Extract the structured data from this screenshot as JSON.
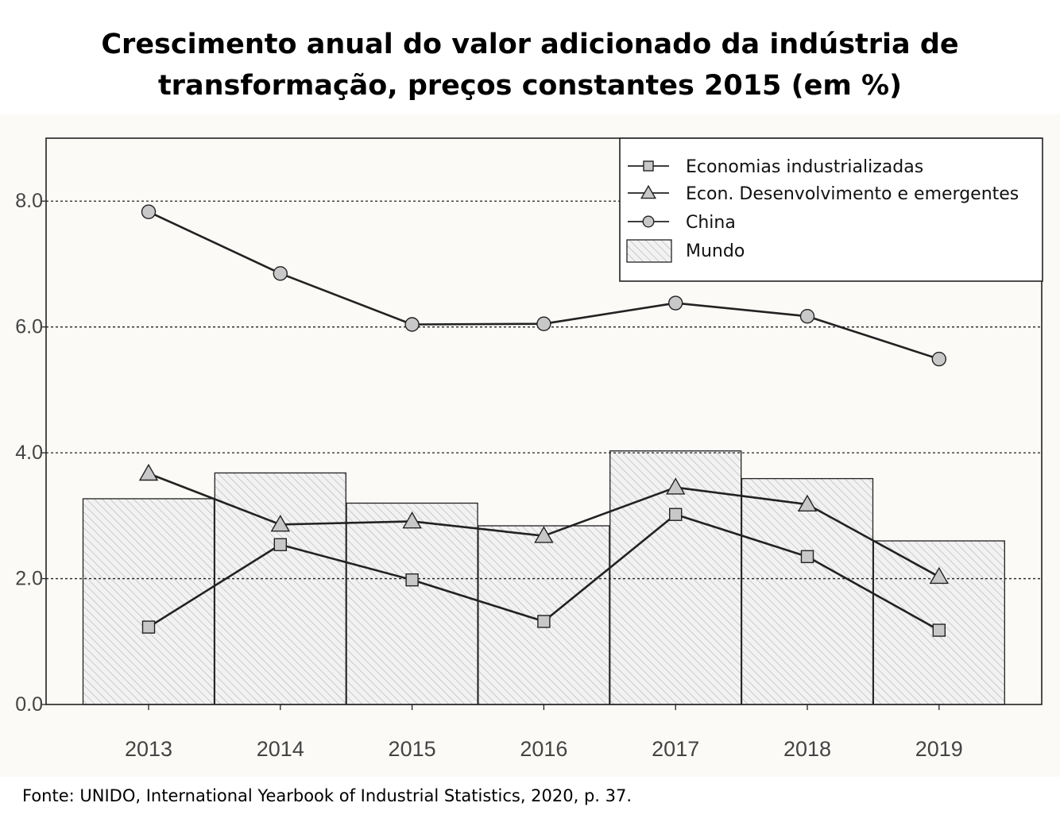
{
  "title_line1": "Crescimento anual do valor adicionado da indústria de",
  "title_line2": "transformação, preços constantes 2015 (em %)",
  "source": "Fonte: UNIDO, International Yearbook of Industrial Statistics, 2020, p. 37.",
  "colors": {
    "line": "#222222",
    "marker_fill": "#c8c8c8",
    "bar_hatch": "#b5b5b5",
    "bar_fill": "#f2f2f2",
    "grid": "#222222",
    "panel": "#fbfaf7"
  },
  "chart_data": {
    "type": "bar+line",
    "title": "Crescimento anual do valor adicionado da indústria de transformação, preços constantes 2015 (em %)",
    "xlabel": "",
    "ylabel": "",
    "ylim": [
      0,
      9
    ],
    "yticks": [
      0,
      2,
      4,
      6,
      8
    ],
    "ytick_labels": [
      "0.0",
      "2.0",
      "4.0",
      "6.0",
      "8.0"
    ],
    "grid": "dotted horizontal at 2, 4, 6, 8",
    "legend_position": "top-right",
    "categories": [
      "2013",
      "2014",
      "2015",
      "2016",
      "2017",
      "2018",
      "2019"
    ],
    "bars": {
      "name": "Mundo",
      "values": [
        3.27,
        3.68,
        3.2,
        2.84,
        4.03,
        3.59,
        2.6
      ]
    },
    "series": [
      {
        "name": "Economias industrializadas",
        "marker": "square",
        "values": [
          1.23,
          2.54,
          1.98,
          1.32,
          3.02,
          2.35,
          1.18
        ]
      },
      {
        "name": "Econ. Desenvolvimento e emergentes",
        "marker": "triangle",
        "values": [
          3.67,
          2.86,
          2.91,
          2.68,
          3.45,
          3.18,
          2.03
        ]
      },
      {
        "name": "China",
        "marker": "circle",
        "values": [
          7.83,
          6.85,
          6.04,
          6.05,
          6.38,
          6.17,
          5.49
        ]
      }
    ]
  }
}
